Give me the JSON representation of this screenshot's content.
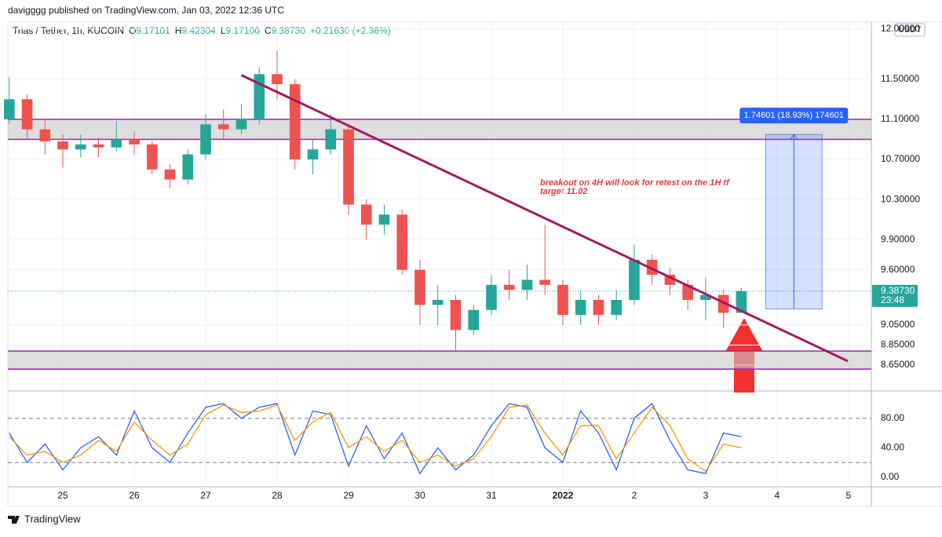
{
  "header": "davigggg published on TradingView.com, Jan 03, 2022 12:36 UTC",
  "footer": "TradingView",
  "chart_data": {
    "type": "candlestick",
    "symbol": "Trias / Tether, 1h, KUCOIN",
    "ohlc": [
      {
        "key": "O",
        "value": "9.17101"
      },
      {
        "key": "H",
        "value": "9.42304"
      },
      {
        "key": "L",
        "value": "9.17100"
      },
      {
        "key": "C",
        "value": "9.38730"
      }
    ],
    "change": "+0.21630 (+2.36%)",
    "currency": "USDT",
    "up_color": "#26a69a",
    "down_color": "#ef5350",
    "grid": true,
    "xlim": [
      -0.77,
      11.32
    ],
    "xticks": [
      {
        "value": 0,
        "label": "25"
      },
      {
        "value": 1,
        "label": "26"
      },
      {
        "value": 2,
        "label": "27"
      },
      {
        "value": 3,
        "label": "28"
      },
      {
        "value": 4,
        "label": "29"
      },
      {
        "value": 5,
        "label": "30"
      },
      {
        "value": 6,
        "label": "31"
      },
      {
        "value": 7,
        "label": "2022"
      },
      {
        "value": 8,
        "label": "2"
      },
      {
        "value": 9,
        "label": "3"
      },
      {
        "value": 10,
        "label": "4"
      },
      {
        "value": 11,
        "label": "5"
      }
    ],
    "ylim": [
      8.4,
      12.07
    ],
    "yticks": [
      {
        "value": 8.65,
        "label": "8.65000"
      },
      {
        "value": 8.85,
        "label": "8.85000"
      },
      {
        "value": 9.05,
        "label": "9.05000"
      },
      {
        "value": 9.6,
        "label": "9.60000"
      },
      {
        "value": 9.9,
        "label": "9.90000"
      },
      {
        "value": 10.3,
        "label": "10.30000"
      },
      {
        "value": 10.7,
        "label": "10.70000"
      },
      {
        "value": 11.1,
        "label": "11.10000"
      },
      {
        "value": 11.5,
        "label": "11.50000"
      },
      {
        "value": 12.0,
        "label": "12.00000"
      }
    ],
    "x": [
      -0.75,
      -0.5,
      -0.25,
      0,
      0.25,
      0.5,
      0.75,
      1,
      1.25,
      1.5,
      1.75,
      2,
      2.25,
      2.5,
      2.75,
      3,
      3.25,
      3.5,
      3.75,
      4,
      4.25,
      4.5,
      4.75,
      5,
      5.25,
      5.5,
      5.75,
      6,
      6.25,
      6.5,
      6.75,
      7,
      7.25,
      7.5,
      7.75,
      8,
      8.25,
      8.5,
      8.75,
      9,
      9.25,
      9.5
    ],
    "open": [
      11.1,
      11.3,
      11.0,
      10.88,
      10.8,
      10.85,
      10.82,
      10.9,
      10.85,
      10.6,
      10.5,
      10.75,
      11.05,
      11.0,
      11.1,
      11.55,
      11.45,
      10.7,
      10.8,
      11.0,
      10.25,
      10.05,
      10.15,
      9.6,
      9.25,
      9.3,
      9.0,
      9.2,
      9.45,
      9.4,
      9.5,
      9.45,
      9.15,
      9.3,
      9.15,
      9.3,
      9.7,
      9.55,
      9.45,
      9.3,
      9.35,
      9.17101
    ],
    "high": [
      11.52,
      11.35,
      11.1,
      10.95,
      10.95,
      10.92,
      11.08,
      10.98,
      10.88,
      10.65,
      10.8,
      11.15,
      11.2,
      11.25,
      11.62,
      11.78,
      11.5,
      10.9,
      11.15,
      11.05,
      10.3,
      10.25,
      10.2,
      9.7,
      9.45,
      9.35,
      9.25,
      9.55,
      9.6,
      9.65,
      10.05,
      9.5,
      9.4,
      9.35,
      9.4,
      9.85,
      9.75,
      9.62,
      9.5,
      9.52,
      9.4,
      9.42304
    ],
    "low": [
      11.05,
      10.9,
      10.75,
      10.62,
      10.72,
      10.72,
      10.78,
      10.75,
      10.55,
      10.42,
      10.45,
      10.7,
      10.9,
      10.95,
      11.05,
      11.3,
      10.6,
      10.55,
      10.75,
      10.15,
      9.9,
      9.95,
      9.55,
      9.05,
      9.05,
      8.8,
      8.95,
      9.15,
      9.3,
      9.3,
      9.35,
      9.05,
      9.05,
      9.05,
      9.1,
      9.25,
      9.45,
      9.35,
      9.2,
      9.1,
      9.02,
      9.171
    ],
    "close": [
      11.3,
      11.0,
      10.88,
      10.8,
      10.85,
      10.82,
      10.9,
      10.85,
      10.6,
      10.5,
      10.75,
      11.05,
      11.0,
      11.1,
      11.55,
      11.45,
      10.7,
      10.8,
      11.0,
      10.25,
      10.05,
      10.15,
      9.6,
      9.25,
      9.3,
      9.0,
      9.2,
      9.45,
      9.4,
      9.5,
      9.45,
      9.15,
      9.3,
      9.15,
      9.3,
      9.7,
      9.55,
      9.45,
      9.3,
      9.35,
      9.17101,
      9.3873
    ],
    "last_price": {
      "value": 9.3873,
      "label": "9.38730",
      "countdown": "23:48"
    },
    "zones": [
      {
        "y": [
          10.9,
          11.1
        ]
      },
      {
        "y": [
          8.61,
          8.79
        ]
      }
    ],
    "zone_color": "#9c27b0",
    "trendline": {
      "x": [
        2.5,
        10.99
      ],
      "y": [
        11.54,
        8.69
      ],
      "color": "#a3195b"
    },
    "measure": {
      "x": [
        9.84,
        10.63
      ],
      "y": [
        9.21,
        10.95
      ],
      "label": "1.74601 (18.93%) 174601"
    },
    "annotation": [
      "breakout on 4H will look for retest on the 1H tf",
      "target 11.02"
    ],
    "indicator": {
      "type": "line",
      "ylim": [
        -13,
        115
      ],
      "yticks": [
        {
          "value": 0,
          "label": "0.00"
        },
        {
          "value": 40,
          "label": "40.00"
        },
        {
          "value": 80,
          "label": "80.00"
        }
      ],
      "bands": [
        80,
        20
      ],
      "series": [
        {
          "color": "#2962ff",
          "values": [
            60,
            20,
            45,
            10,
            40,
            55,
            30,
            90,
            40,
            20,
            60,
            95,
            100,
            80,
            95,
            100,
            30,
            90,
            85,
            15,
            70,
            25,
            60,
            5,
            40,
            10,
            30,
            70,
            100,
            95,
            40,
            20,
            90,
            60,
            10,
            80,
            100,
            50,
            10,
            5,
            60,
            55
          ]
        },
        {
          "color": "#ff9800",
          "values": [
            55,
            30,
            35,
            20,
            30,
            50,
            35,
            75,
            50,
            30,
            45,
            85,
            98,
            88,
            90,
            98,
            50,
            75,
            88,
            40,
            55,
            35,
            50,
            20,
            30,
            15,
            25,
            55,
            95,
            98,
            60,
            30,
            70,
            70,
            25,
            60,
            95,
            70,
            25,
            8,
            45,
            40
          ]
        }
      ]
    }
  }
}
